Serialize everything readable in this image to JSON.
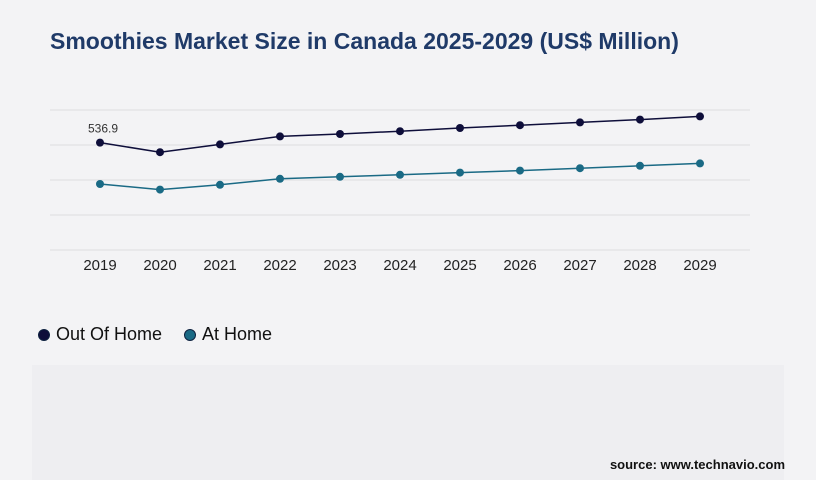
{
  "title": "Smoothies Market Size in Canada 2025-2029 (US$ Million)",
  "source": "source: www.technavio.com",
  "chart_data": {
    "type": "line",
    "title": "Smoothies Market Size in Canada 2025-2029 (US$ Million)",
    "xlabel": "",
    "ylabel": "",
    "x": [
      "2019",
      "2020",
      "2021",
      "2022",
      "2023",
      "2024",
      "2025",
      "2026",
      "2027",
      "2028",
      "2029"
    ],
    "ylim": [
      0,
      800
    ],
    "grid": "horizontal",
    "legend_position": "bottom-left",
    "series": [
      {
        "name": "Out Of Home",
        "color": "#0e0e3a",
        "values": [
          536.9,
          489,
          528,
          568,
          580,
          594,
          610,
          624,
          638,
          652,
          668
        ]
      },
      {
        "name": "At Home",
        "color": "#1a6a85",
        "values": [
          330,
          302,
          326,
          356,
          366,
          376,
          387,
          397,
          409,
          421,
          433
        ]
      }
    ],
    "annotations": [
      {
        "series": 0,
        "index": 0,
        "text": "536.9"
      }
    ]
  }
}
